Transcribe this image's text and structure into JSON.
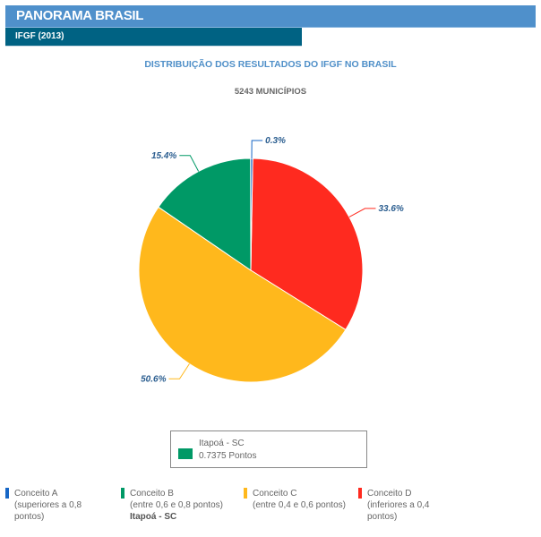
{
  "header": {
    "title": "PANORAMA BRASIL",
    "subtitle": "IFGF (2013)"
  },
  "chart_data": {
    "type": "pie",
    "title": "DISTRIBUIÇÃO DOS RESULTADOS DO IFGF NO BRASIL",
    "subtitle": "5243 MUNICÍPIOS",
    "slices": [
      {
        "name": "Conceito D",
        "value": 33.6,
        "label": "33.6%",
        "color": "#ff2a1f"
      },
      {
        "name": "Conceito C",
        "value": 50.6,
        "label": "50.6%",
        "color": "#ffb81c"
      },
      {
        "name": "Conceito B",
        "value": 15.4,
        "label": "15.4%",
        "color": "#009966"
      },
      {
        "name": "Conceito A",
        "value": 0.3,
        "label": "0.3%",
        "color": "#1666c6"
      }
    ]
  },
  "tooltip": {
    "name": "Itapoá - SC",
    "value": "0.7375 Pontos",
    "color": "#009966"
  },
  "legend": [
    {
      "title": "Conceito A",
      "desc1": "(superiores a 0,8",
      "desc2": "pontos)",
      "extra": "",
      "color": "#1666c6"
    },
    {
      "title": "Conceito B",
      "desc1": "(entre 0,6 e 0,8 pontos)",
      "desc2": "",
      "extra": "Itapoá - SC",
      "color": "#009966"
    },
    {
      "title": "Conceito C",
      "desc1": "(entre 0,4 e 0,6 pontos)",
      "desc2": "",
      "extra": "",
      "color": "#ffb81c"
    },
    {
      "title": "Conceito D",
      "desc1": "(inferiores a 0,4",
      "desc2": "pontos)",
      "extra": "",
      "color": "#ff2a1f"
    }
  ]
}
